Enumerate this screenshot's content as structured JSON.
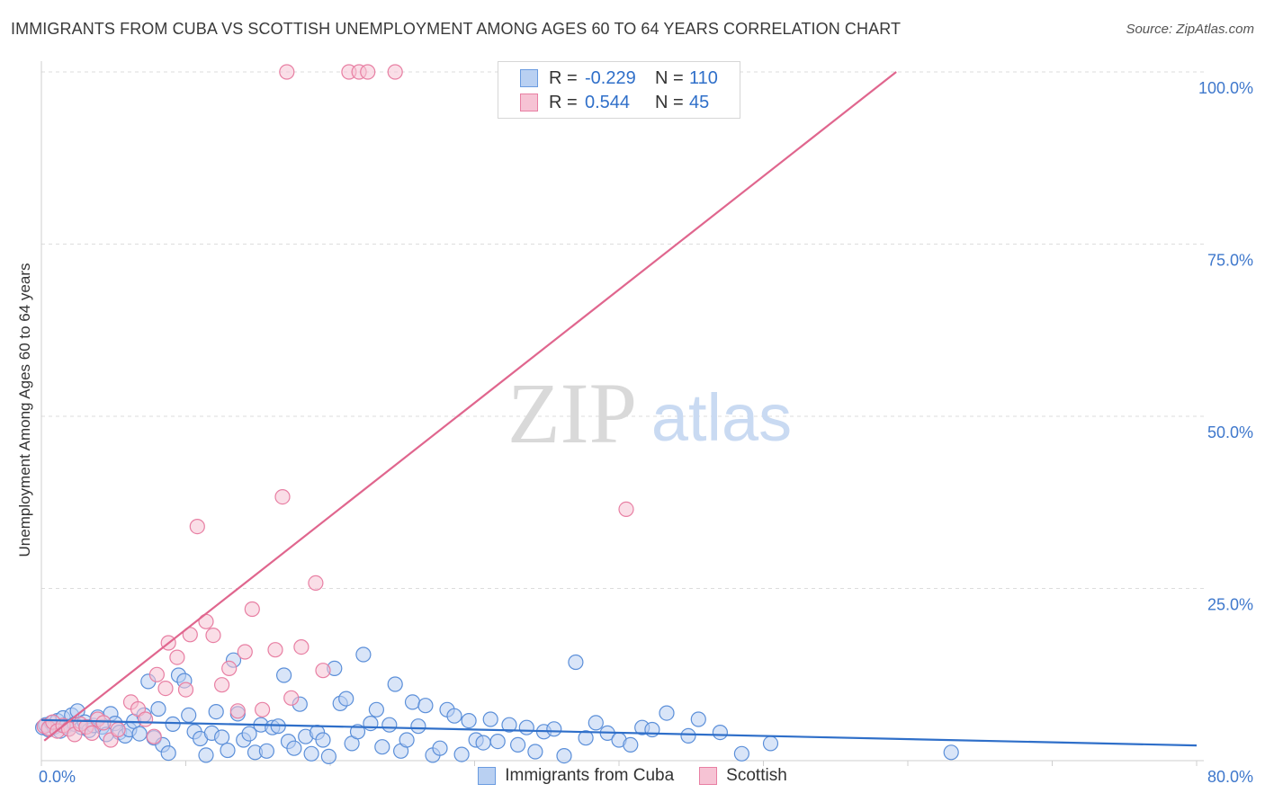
{
  "header": {
    "title": "IMMIGRANTS FROM CUBA VS SCOTTISH UNEMPLOYMENT AMONG AGES 60 TO 64 YEARS CORRELATION CHART",
    "source": "Source: ZipAtlas.com"
  },
  "watermark": {
    "part1": "ZIP",
    "part2": "atlas"
  },
  "legend": {
    "rows": [
      {
        "r_label": "R =",
        "r_value": "-0.229",
        "n_label": "N =",
        "n_value": "110",
        "color": "#6a9be0",
        "fill": "#b9d0f2"
      },
      {
        "r_label": "R =",
        "r_value": "0.544",
        "n_label": "N =",
        "n_value": "45",
        "color": "#e87fa3",
        "fill": "#f6c3d4"
      }
    ]
  },
  "chart_data": {
    "type": "scatter",
    "title": "IMMIGRANTS FROM CUBA VS SCOTTISH UNEMPLOYMENT AMONG AGES 60 TO 64 YEARS CORRELATION CHART",
    "xlabel": "",
    "ylabel": "Unemployment Among Ages 60 to 64 years",
    "xlim": [
      0,
      80
    ],
    "ylim": [
      0,
      100
    ],
    "x_tick_labels": [
      "0.0%",
      "80.0%"
    ],
    "y_ticks": [
      25,
      50,
      75,
      100
    ],
    "y_tick_labels": [
      "25.0%",
      "50.0%",
      "75.0%",
      "100.0%"
    ],
    "grid": true,
    "legend_position": "top-center",
    "series": [
      {
        "name": "Immigrants from Cuba",
        "color": "#5b8fd9",
        "fill": "#b9d0f2",
        "trend": {
          "x": [
            0,
            80
          ],
          "y": [
            5.9,
            2.2
          ]
        },
        "points": [
          [
            0.1,
            4.8
          ],
          [
            0.3,
            5.2
          ],
          [
            0.5,
            4.5
          ],
          [
            0.7,
            5.5
          ],
          [
            0.9,
            4.9
          ],
          [
            1.1,
            5.8
          ],
          [
            1.3,
            4.3
          ],
          [
            1.5,
            6.2
          ],
          [
            1.7,
            5.0
          ],
          [
            1.9,
            4.6
          ],
          [
            2.1,
            6.6
          ],
          [
            2.3,
            5.3
          ],
          [
            2.5,
            7.2
          ],
          [
            2.8,
            4.8
          ],
          [
            3.0,
            5.6
          ],
          [
            3.3,
            4.4
          ],
          [
            3.6,
            5.1
          ],
          [
            3.9,
            6.3
          ],
          [
            4.2,
            4.9
          ],
          [
            4.5,
            3.8
          ],
          [
            4.8,
            6.8
          ],
          [
            5.1,
            5.4
          ],
          [
            5.4,
            4.1
          ],
          [
            5.8,
            3.6
          ],
          [
            6.1,
            4.5
          ],
          [
            6.4,
            5.7
          ],
          [
            6.8,
            3.9
          ],
          [
            7.1,
            6.6
          ],
          [
            7.4,
            11.5
          ],
          [
            7.8,
            3.3
          ],
          [
            8.1,
            7.5
          ],
          [
            8.4,
            2.3
          ],
          [
            8.8,
            1.1
          ],
          [
            9.1,
            5.3
          ],
          [
            9.5,
            12.4
          ],
          [
            9.9,
            11.6
          ],
          [
            10.2,
            6.6
          ],
          [
            10.6,
            4.2
          ],
          [
            11.0,
            3.2
          ],
          [
            11.4,
            0.8
          ],
          [
            11.8,
            4.0
          ],
          [
            12.1,
            7.1
          ],
          [
            12.5,
            3.4
          ],
          [
            12.9,
            1.5
          ],
          [
            13.3,
            14.6
          ],
          [
            13.6,
            6.8
          ],
          [
            14.0,
            3.0
          ],
          [
            14.4,
            3.9
          ],
          [
            14.8,
            1.2
          ],
          [
            15.2,
            5.2
          ],
          [
            15.6,
            1.4
          ],
          [
            16.0,
            4.8
          ],
          [
            16.4,
            5.0
          ],
          [
            16.8,
            12.4
          ],
          [
            17.1,
            2.8
          ],
          [
            17.5,
            1.8
          ],
          [
            17.9,
            8.2
          ],
          [
            18.3,
            3.5
          ],
          [
            18.7,
            1.0
          ],
          [
            19.1,
            4.1
          ],
          [
            19.5,
            3.0
          ],
          [
            19.9,
            0.6
          ],
          [
            20.3,
            13.4
          ],
          [
            20.7,
            8.3
          ],
          [
            21.1,
            9.0
          ],
          [
            21.5,
            2.5
          ],
          [
            21.9,
            4.2
          ],
          [
            22.3,
            15.4
          ],
          [
            22.8,
            5.4
          ],
          [
            23.2,
            7.4
          ],
          [
            23.6,
            2.0
          ],
          [
            24.1,
            5.2
          ],
          [
            24.5,
            11.1
          ],
          [
            24.9,
            1.4
          ],
          [
            25.3,
            3.0
          ],
          [
            25.7,
            8.5
          ],
          [
            26.1,
            5.0
          ],
          [
            26.6,
            8.0
          ],
          [
            27.1,
            0.8
          ],
          [
            27.6,
            1.8
          ],
          [
            28.1,
            7.4
          ],
          [
            28.6,
            6.5
          ],
          [
            29.1,
            0.9
          ],
          [
            29.6,
            5.8
          ],
          [
            30.1,
            3.0
          ],
          [
            30.6,
            2.6
          ],
          [
            31.1,
            6.0
          ],
          [
            31.6,
            2.8
          ],
          [
            32.4,
            5.2
          ],
          [
            33.0,
            2.3
          ],
          [
            33.6,
            4.8
          ],
          [
            34.2,
            1.3
          ],
          [
            34.8,
            4.2
          ],
          [
            35.5,
            4.6
          ],
          [
            36.2,
            0.7
          ],
          [
            37.0,
            14.3
          ],
          [
            37.7,
            3.3
          ],
          [
            38.4,
            5.5
          ],
          [
            39.2,
            4.0
          ],
          [
            40.0,
            3.0
          ],
          [
            40.8,
            2.3
          ],
          [
            41.6,
            4.8
          ],
          [
            42.3,
            4.5
          ],
          [
            43.3,
            6.9
          ],
          [
            44.8,
            3.6
          ],
          [
            45.5,
            6.0
          ],
          [
            47.0,
            4.1
          ],
          [
            48.5,
            1.0
          ],
          [
            50.5,
            2.5
          ],
          [
            63.0,
            1.2
          ]
        ]
      },
      {
        "name": "Scottish",
        "color": "#e87fa3",
        "fill": "#f6c3d4",
        "trend": {
          "x": [
            0.2,
            59.2
          ],
          "y": [
            2.9,
            100
          ]
        },
        "points": [
          [
            0.2,
            5.0
          ],
          [
            0.5,
            4.7
          ],
          [
            0.8,
            5.6
          ],
          [
            1.1,
            4.3
          ],
          [
            1.5,
            5.1
          ],
          [
            1.9,
            4.6
          ],
          [
            2.3,
            3.8
          ],
          [
            2.7,
            5.3
          ],
          [
            3.1,
            4.9
          ],
          [
            3.5,
            4.0
          ],
          [
            3.9,
            6.0
          ],
          [
            4.3,
            5.5
          ],
          [
            4.8,
            3.0
          ],
          [
            5.3,
            4.5
          ],
          [
            6.2,
            8.5
          ],
          [
            6.7,
            7.5
          ],
          [
            7.2,
            6.0
          ],
          [
            7.8,
            3.5
          ],
          [
            8.0,
            12.5
          ],
          [
            8.6,
            10.5
          ],
          [
            8.8,
            17.1
          ],
          [
            9.4,
            15.0
          ],
          [
            10.0,
            10.3
          ],
          [
            10.3,
            18.3
          ],
          [
            10.8,
            34.0
          ],
          [
            11.4,
            20.2
          ],
          [
            11.9,
            18.2
          ],
          [
            12.5,
            11.0
          ],
          [
            13.0,
            13.4
          ],
          [
            13.6,
            7.2
          ],
          [
            14.1,
            15.8
          ],
          [
            14.6,
            22.0
          ],
          [
            15.3,
            7.4
          ],
          [
            16.2,
            16.1
          ],
          [
            16.7,
            38.3
          ],
          [
            17.3,
            9.1
          ],
          [
            18.0,
            16.5
          ],
          [
            19.0,
            25.8
          ],
          [
            19.5,
            13.1
          ],
          [
            17.0,
            100
          ],
          [
            21.3,
            100
          ],
          [
            22.0,
            100
          ],
          [
            22.6,
            100
          ],
          [
            24.5,
            100
          ],
          [
            40.5,
            36.5
          ]
        ]
      }
    ]
  },
  "bottom_legend": [
    {
      "label": "Immigrants from Cuba",
      "color": "#6a9be0",
      "fill": "#b9d0f2"
    },
    {
      "label": "Scottish",
      "color": "#e87fa3",
      "fill": "#f6c3d4"
    }
  ]
}
